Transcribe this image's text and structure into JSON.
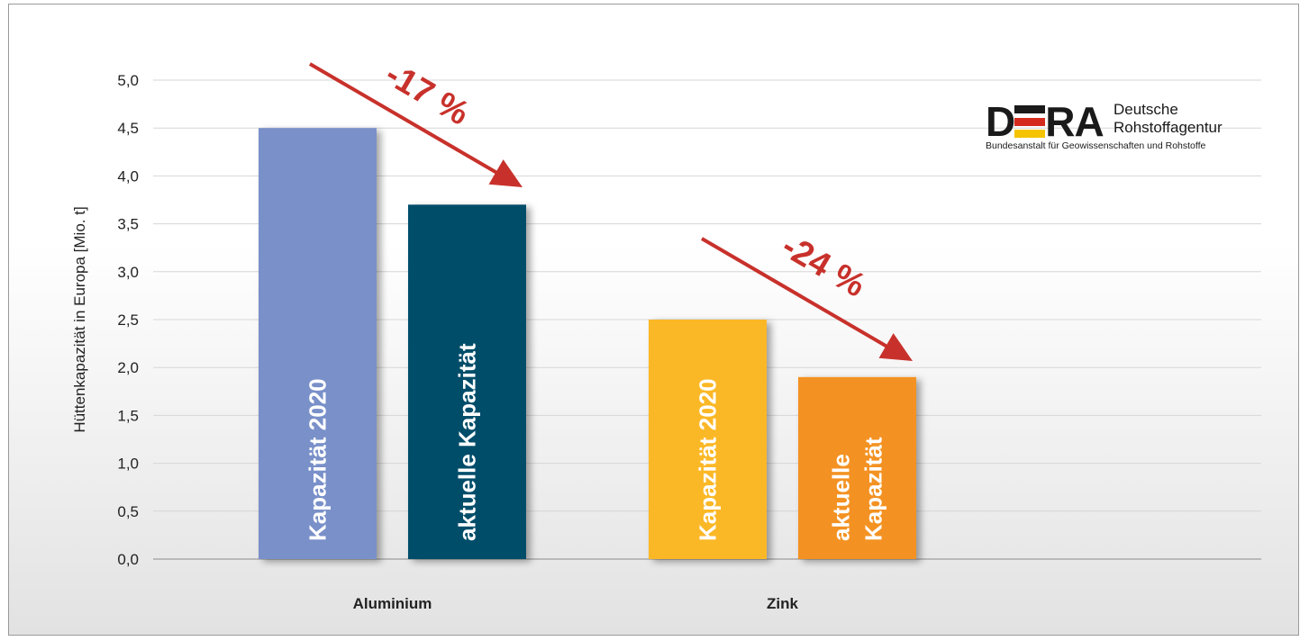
{
  "chart_data": {
    "type": "bar",
    "ylabel": "Hüttenkapazität in Europa [Mio. t]",
    "ylim": [
      0,
      5
    ],
    "yticks": [
      "0,0",
      "0,5",
      "1,0",
      "1,5",
      "2,0",
      "2,5",
      "3,0",
      "3,5",
      "4,0",
      "4,5",
      "5,0"
    ],
    "grid": true,
    "categories": [
      "Aluminium",
      "Zink"
    ],
    "bars": [
      {
        "category": "Aluminium",
        "label": [
          "Kapazität 2020"
        ],
        "value": 4.5,
        "color": "#7990c9"
      },
      {
        "category": "Aluminium",
        "label": [
          "aktuelle Kapazität"
        ],
        "value": 3.7,
        "color": "#004e6a"
      },
      {
        "category": "Zink",
        "label": [
          "Kapazität 2020"
        ],
        "value": 2.5,
        "color": "#fbb825"
      },
      {
        "category": "Zink",
        "label": [
          "aktuelle",
          "Kapazität"
        ],
        "value": 1.9,
        "color": "#f39220"
      }
    ],
    "annotations": [
      {
        "category": "Aluminium",
        "text": "-17 %"
      },
      {
        "category": "Zink",
        "text": "-24 %"
      }
    ],
    "arrow_color": "#c8312b"
  },
  "logo": {
    "mark_d": "D",
    "mark_ra": "RA",
    "name_line1": "Deutsche",
    "name_line2": "Rohstoffagentur",
    "subtitle": "Bundesanstalt für Geowissenschaften und Rohstoffe",
    "colors": [
      "#1a1a1a",
      "#d52b1e",
      "#f5c400"
    ]
  }
}
